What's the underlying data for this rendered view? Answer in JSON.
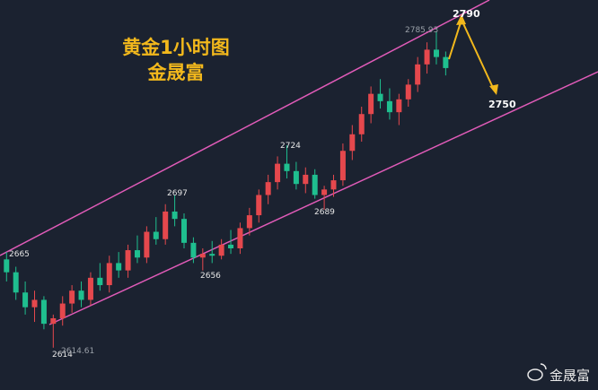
{
  "chart_data": {
    "type": "candlestick",
    "title": "黄金1小时图",
    "subtitle": "金晟富",
    "up_color": "#e5484d",
    "down_color": "#1fbf8f",
    "ylim": [
      2591,
      2803
    ],
    "x": [
      0,
      1,
      2,
      3,
      4,
      5,
      6,
      7,
      8,
      9,
      10,
      11,
      12,
      13,
      14,
      15,
      16,
      17,
      18,
      19,
      20,
      21,
      22,
      23,
      24,
      25,
      26,
      27,
      28,
      29,
      30,
      31,
      32,
      33,
      34,
      35,
      36,
      37,
      38,
      39,
      40,
      41,
      42,
      43,
      44,
      45,
      46,
      47
    ],
    "xlim": [
      -0.7,
      63.3
    ],
    "open": [
      2662,
      2655,
      2644,
      2636,
      2640,
      2627,
      2630,
      2638,
      2645,
      2640,
      2652,
      2648,
      2660,
      2656,
      2667,
      2663,
      2677,
      2673,
      2688,
      2684,
      2671,
      2663,
      2665,
      2664,
      2670,
      2668,
      2679,
      2686,
      2697,
      2704,
      2714,
      2710,
      2703,
      2708,
      2697,
      2700,
      2705,
      2721,
      2730,
      2741,
      2752,
      2748,
      2742,
      2749,
      2757,
      2768,
      2776,
      2772
    ],
    "high": [
      2666,
      2658,
      2650,
      2645,
      2642,
      2632,
      2642,
      2648,
      2650,
      2655,
      2660,
      2664,
      2666,
      2670,
      2675,
      2680,
      2685,
      2692,
      2697,
      2687,
      2674,
      2668,
      2672,
      2673,
      2678,
      2682,
      2690,
      2700,
      2708,
      2718,
      2724,
      2715,
      2712,
      2711,
      2702,
      2708,
      2725,
      2735,
      2745,
      2756,
      2760,
      2755,
      2752,
      2760,
      2772,
      2780,
      2786,
      2775
    ],
    "low": [
      2650,
      2640,
      2632,
      2628,
      2624,
      2614,
      2626,
      2633,
      2636,
      2637,
      2645,
      2644,
      2652,
      2652,
      2660,
      2660,
      2670,
      2670,
      2680,
      2668,
      2660,
      2656,
      2660,
      2662,
      2665,
      2665,
      2675,
      2682,
      2692,
      2700,
      2706,
      2700,
      2698,
      2695,
      2689,
      2696,
      2702,
      2716,
      2726,
      2736,
      2744,
      2738,
      2735,
      2745,
      2753,
      2763,
      2768,
      2762
    ],
    "close": [
      2655,
      2644,
      2636,
      2640,
      2627,
      2630,
      2638,
      2645,
      2640,
      2652,
      2648,
      2660,
      2656,
      2667,
      2663,
      2677,
      2673,
      2688,
      2684,
      2671,
      2663,
      2665,
      2664,
      2670,
      2668,
      2679,
      2686,
      2697,
      2704,
      2714,
      2710,
      2703,
      2708,
      2697,
      2700,
      2705,
      2721,
      2730,
      2741,
      2752,
      2748,
      2742,
      2749,
      2757,
      2768,
      2776,
      2772,
      2766
    ],
    "annotations": [
      "2665",
      "2614",
      "2614.61",
      "2697",
      "2656",
      "2724",
      "2689",
      "2785.93",
      "2790",
      "2750"
    ],
    "watermark": "金晟富"
  }
}
